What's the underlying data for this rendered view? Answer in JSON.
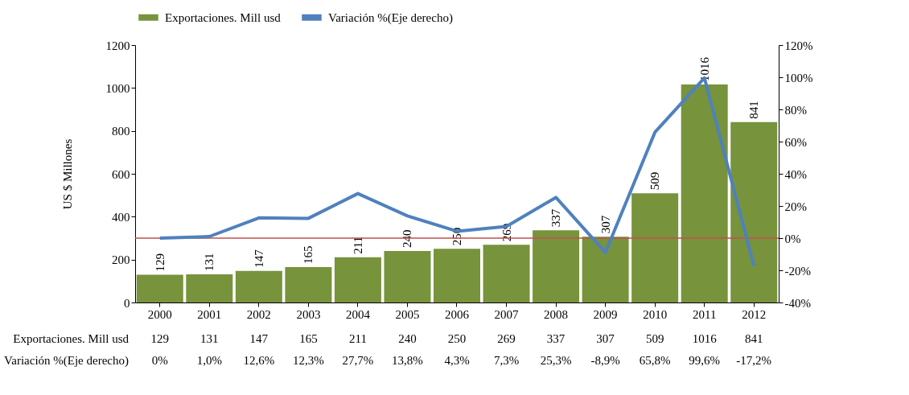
{
  "chart_data": {
    "type": "bar",
    "ylabel": "US $ Millones",
    "categories": [
      "2000",
      "2001",
      "2002",
      "2003",
      "2004",
      "2005",
      "2006",
      "2007",
      "2008",
      "2009",
      "2010",
      "2011",
      "2012"
    ],
    "series": [
      {
        "name": "Exportaciones. Mill usd",
        "color": "#77933c",
        "values": [
          129,
          131,
          147,
          165,
          211,
          240,
          250,
          269,
          337,
          307,
          509,
          1016,
          841
        ],
        "value_labels": [
          "129",
          "131",
          "147",
          "165",
          "211",
          "240",
          "250",
          "269",
          "337",
          "307",
          "509",
          "1016",
          "841"
        ]
      },
      {
        "name": "Variación %(Eje derecho)",
        "type": "line",
        "axis": "y2",
        "color": "#4f81bd",
        "values": [
          0,
          1.0,
          12.6,
          12.3,
          27.7,
          13.8,
          4.3,
          7.3,
          25.3,
          -8.9,
          65.8,
          99.6,
          -17.2
        ],
        "value_labels": [
          "0%",
          "1,0%",
          "12,6%",
          "12,3%",
          "27,7%",
          "13,8%",
          "4,3%",
          "7,3%",
          "25,3%",
          "-8,9%",
          "65,8%",
          "99,6%",
          "-17,2%"
        ]
      }
    ],
    "ylim": [
      0,
      1200
    ],
    "yticks": [
      0,
      200,
      400,
      600,
      800,
      1000,
      1200
    ],
    "y2lim": [
      -40,
      120
    ],
    "y2ticks": [
      {
        "value": -40,
        "label": "-40%"
      },
      {
        "value": -20,
        "label": "-20%"
      },
      {
        "value": 0,
        "label": "0%"
      },
      {
        "value": 20,
        "label": "20%"
      },
      {
        "value": 40,
        "label": "40%"
      },
      {
        "value": 60,
        "label": "60%"
      },
      {
        "value": 80,
        "label": "80%"
      },
      {
        "value": 100,
        "label": "100%"
      },
      {
        "value": 120,
        "label": "120%"
      }
    ],
    "ref_lines": [
      {
        "axis": "y2",
        "value": 0,
        "color": "#c0504d"
      }
    ],
    "data_labels": true,
    "legend": "top",
    "grid": false,
    "marker": "none",
    "line_style": "solid"
  }
}
